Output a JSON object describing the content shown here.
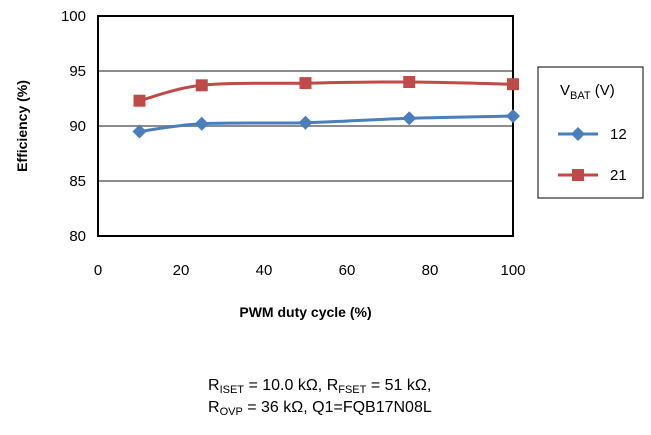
{
  "chart_data": {
    "type": "line",
    "title": "",
    "xlabel": "PWM duty cycle  (%)",
    "ylabel": "Efficiency  (%)",
    "xlim": [
      0,
      100
    ],
    "ylim": [
      80,
      100
    ],
    "x_ticks": [
      0,
      20,
      40,
      60,
      80,
      100
    ],
    "y_ticks": [
      80,
      85,
      90,
      95,
      100
    ],
    "grid": "horizontal",
    "legend_position": "right",
    "legend_title": {
      "main": "V",
      "sub": "BAT",
      "suffix": " (V)"
    },
    "series": [
      {
        "name": "12",
        "color": "#4a7ebb",
        "marker": "diamond",
        "x": [
          10,
          25,
          50,
          75,
          100
        ],
        "y": [
          89.5,
          90.2,
          90.3,
          90.7,
          90.9
        ]
      },
      {
        "name": "21",
        "color": "#be4b48",
        "marker": "square",
        "x": [
          10,
          25,
          50,
          75,
          100
        ],
        "y": [
          92.3,
          93.7,
          93.9,
          94.0,
          93.8
        ]
      }
    ]
  },
  "caption": {
    "line1": [
      {
        "t": "R"
      },
      {
        "sub": "ISET"
      },
      {
        "t": " = 10.0 kΩ, R"
      },
      {
        "sub": "FSET"
      },
      {
        "t": " = 51 kΩ,"
      }
    ],
    "line2": [
      {
        "t": "R"
      },
      {
        "sub": "OVP"
      },
      {
        "t": " = 36 kΩ, Q1=FQB17N08L"
      }
    ]
  }
}
